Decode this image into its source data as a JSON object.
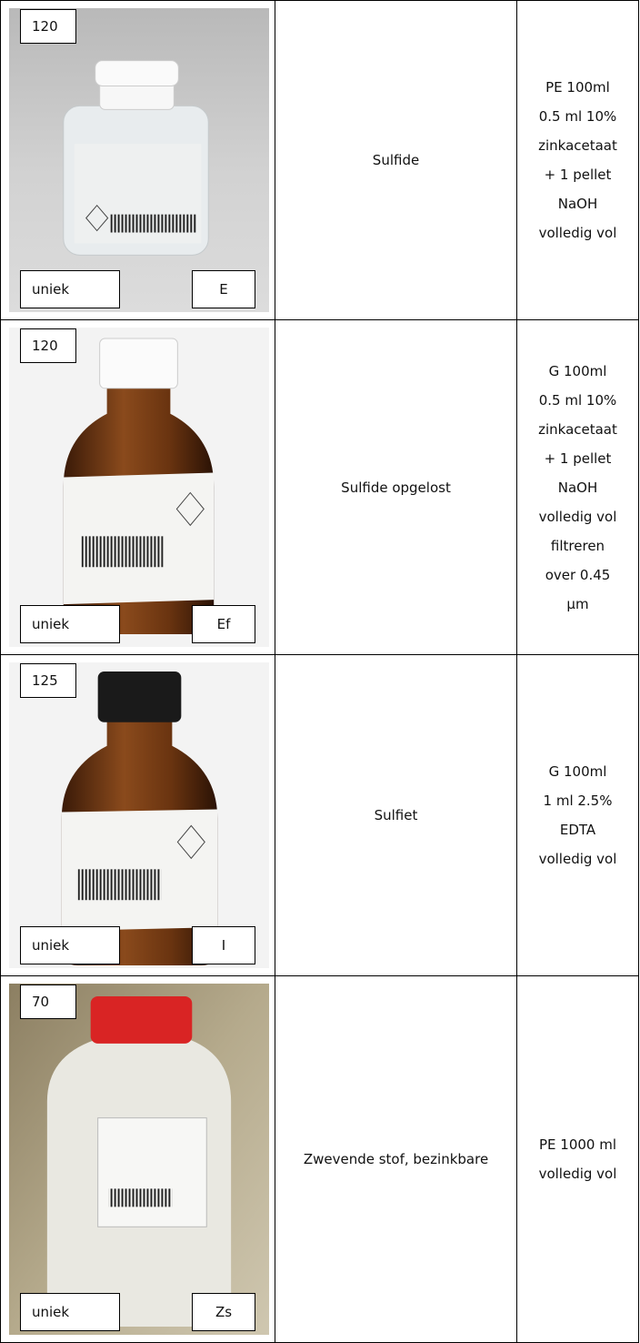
{
  "table": {
    "rows": [
      {
        "code": "120",
        "label_left": "uniek",
        "label_right": "E",
        "name": "Sulfide",
        "description": [
          "PE 100ml",
          "0.5 ml 10%",
          "zinkacetaat",
          "+ 1 pellet",
          "NaOH",
          "volledig vol"
        ]
      },
      {
        "code": "120",
        "label_left": "uniek",
        "label_right": "Ef",
        "name": "Sulfide opgelost",
        "description": [
          "G 100ml",
          "0.5 ml 10%",
          "zinkacetaat",
          "+ 1 pellet",
          "NaOH",
          "volledig vol",
          "filtreren",
          "over 0.45",
          "µm"
        ]
      },
      {
        "code": "125",
        "label_left": "uniek",
        "label_right": "I",
        "name": "Sulfiet",
        "description": [
          "G 100ml",
          "1 ml 2.5%",
          "EDTA",
          "volledig vol"
        ]
      },
      {
        "code": "70",
        "label_left": "uniek",
        "label_right": "Zs",
        "name": "Zwevende stof, bezinkbare",
        "description": [
          "PE 1000 ml",
          "volledig vol"
        ]
      }
    ]
  }
}
